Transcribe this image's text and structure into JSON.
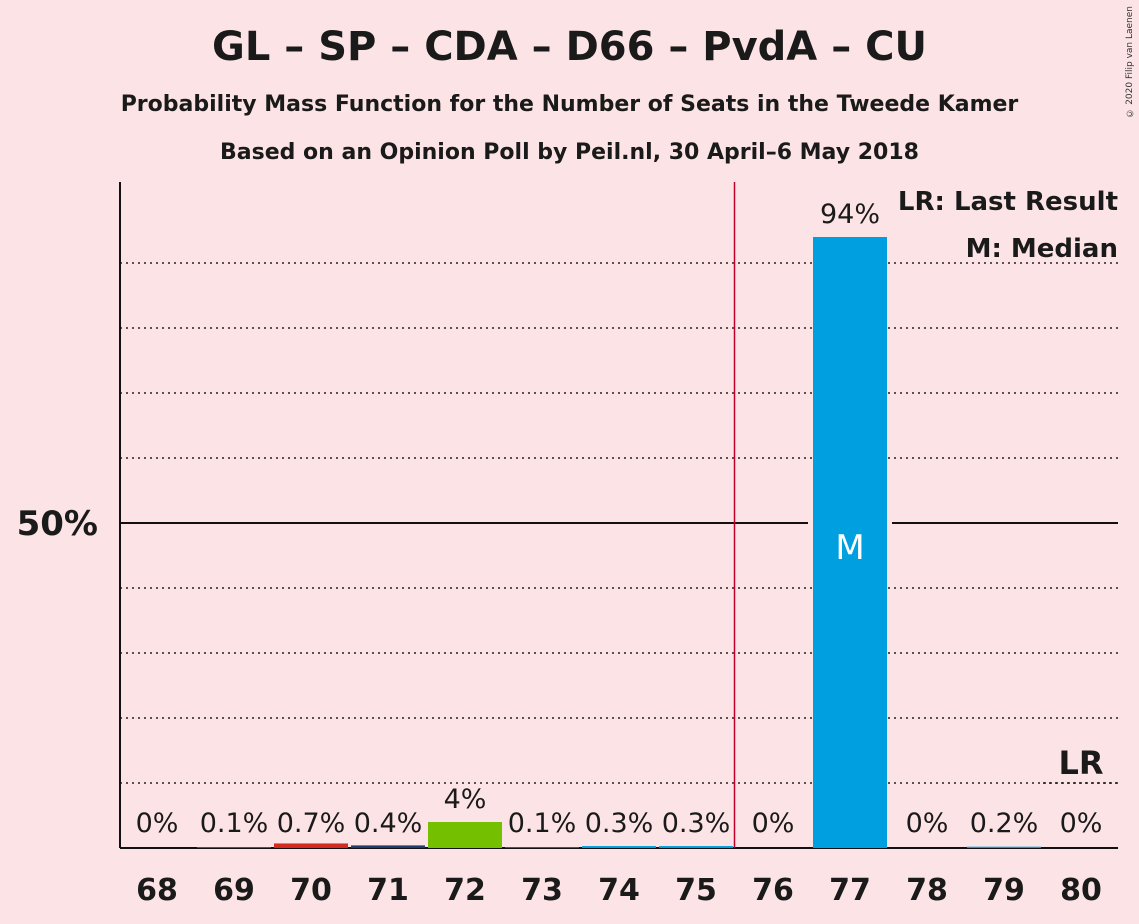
{
  "title": "GL – SP – CDA – D66 – PvdA – CU",
  "subtitle": "Probability Mass Function for the Number of Seats in the Tweede Kamer",
  "subtitle2": "Based on an Opinion Poll by Peil.nl, 30 April–6 May 2018",
  "copyright": "© 2020 Filip van Laenen",
  "legend": {
    "last_result": "LR: Last Result",
    "median": "M: Median"
  },
  "chart_data": {
    "type": "bar",
    "categories": [
      "68",
      "69",
      "70",
      "71",
      "72",
      "73",
      "74",
      "75",
      "76",
      "77",
      "78",
      "79",
      "80"
    ],
    "values": [
      0,
      0.1,
      0.7,
      0.4,
      4,
      0.1,
      0.3,
      0.3,
      0,
      94,
      0,
      0.2,
      0
    ],
    "value_labels": [
      "0%",
      "0.1%",
      "0.7%",
      "0.4%",
      "4%",
      "0.1%",
      "0.3%",
      "0.3%",
      "0%",
      "94%",
      "0%",
      "0.2%",
      "0%"
    ],
    "bar_colors": [
      "#00a0e0",
      "#00a0e0",
      "#d52a1e",
      "#1f3b6e",
      "#73bf00",
      "#00a0e0",
      "#00a0e0",
      "#00a0e0",
      "#00a0e0",
      "#00a0e0",
      "#00a0e0",
      "#00a0e0",
      "#00a0e0"
    ],
    "ylim": [
      0,
      100
    ],
    "y_tick_label": "50%",
    "y_tick_value": 50,
    "gridlines": [
      10,
      20,
      30,
      40,
      60,
      70,
      80,
      90
    ],
    "majority_line_after": "75",
    "majority_line_color": "#c0002a",
    "median_category": "77",
    "median_marker": "M",
    "last_result_category": "80",
    "last_result_marker": "LR"
  }
}
